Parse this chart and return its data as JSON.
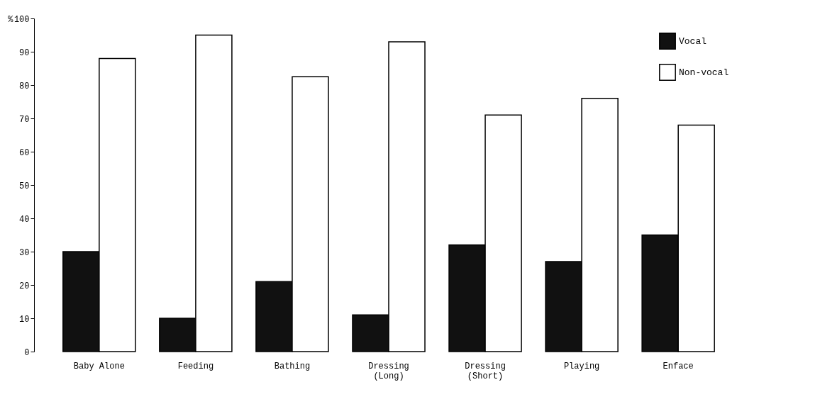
{
  "chart_data": {
    "type": "bar",
    "ylabel": "%",
    "categories": [
      "Baby Alone",
      "Feeding",
      "Bathing",
      "Dressing (Long)",
      "Dressing (Short)",
      "Playing",
      "Enface"
    ],
    "series": [
      {
        "name": "Vocal",
        "color": "#111111",
        "values": [
          30,
          10,
          21,
          11,
          32,
          27,
          35
        ]
      },
      {
        "name": "Non-vocal",
        "color": "#ffffff",
        "values": [
          88,
          95,
          82.5,
          93,
          71,
          76,
          68
        ]
      }
    ],
    "ylim": [
      0,
      100
    ],
    "yticks": [
      0,
      10,
      20,
      30,
      40,
      50,
      60,
      70,
      80,
      90,
      100
    ],
    "grid": false,
    "legend": "top right"
  }
}
